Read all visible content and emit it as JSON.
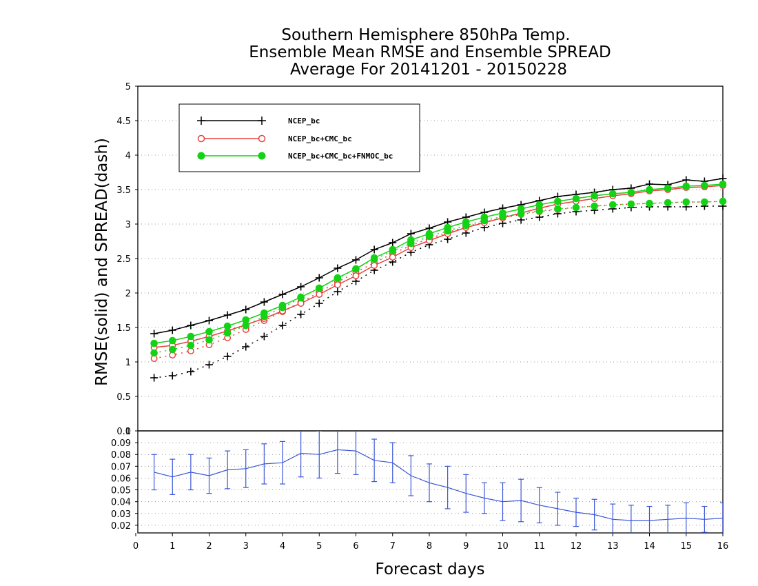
{
  "title": {
    "line1": "Southern Hemisphere 850hPa Temp.",
    "line2": "Ensemble Mean RMSE and Ensemble SPREAD",
    "line3": "Average For 20141201 - 20150228"
  },
  "colors": {
    "ncep": "#000000",
    "ncep_cmc": "#e8413c",
    "ncep_cmc_fnmoc": "#14d214",
    "diff": "#3a55d8"
  },
  "chart_data": [
    {
      "type": "line",
      "panel": "top",
      "ylabel": "RMSE(solid) and SPREAD(dash)",
      "ylim": [
        0,
        5
      ],
      "yticks": [
        "0",
        "0.5",
        "1",
        "1.5",
        "2",
        "2.5",
        "3",
        "3.5",
        "4",
        "4.5",
        "5"
      ],
      "grid": true,
      "legend_position": "top-left",
      "x": [
        0.5,
        1,
        1.5,
        2,
        2.5,
        3,
        3.5,
        4,
        4.5,
        5,
        5.5,
        6,
        6.5,
        7,
        7.5,
        8,
        8.5,
        9,
        9.5,
        10,
        10.5,
        11,
        11.5,
        12,
        12.5,
        13,
        13.5,
        14,
        14.5,
        15,
        15.5,
        16
      ],
      "series": [
        {
          "name": "NCEP_bc",
          "color": "black",
          "marker": "plus",
          "rmse": [
            1.41,
            1.46,
            1.53,
            1.6,
            1.68,
            1.76,
            1.87,
            1.98,
            2.09,
            2.22,
            2.36,
            2.48,
            2.63,
            2.73,
            2.86,
            2.94,
            3.03,
            3.1,
            3.17,
            3.23,
            3.28,
            3.34,
            3.4,
            3.43,
            3.46,
            3.5,
            3.52,
            3.58,
            3.57,
            3.64,
            3.62,
            3.66
          ],
          "spread": [
            0.77,
            0.8,
            0.86,
            0.96,
            1.08,
            1.22,
            1.37,
            1.53,
            1.69,
            1.85,
            2.02,
            2.17,
            2.33,
            2.45,
            2.59,
            2.7,
            2.78,
            2.87,
            2.95,
            3.01,
            3.06,
            3.1,
            3.15,
            3.18,
            3.2,
            3.22,
            3.24,
            3.25,
            3.25,
            3.25,
            3.26,
            3.26
          ]
        },
        {
          "name": "NCEP_bc+CMC_bc",
          "color": "red",
          "marker": "open-circle",
          "rmse": [
            1.21,
            1.24,
            1.3,
            1.37,
            1.45,
            1.54,
            1.63,
            1.74,
            1.85,
            1.98,
            2.12,
            2.25,
            2.4,
            2.52,
            2.66,
            2.76,
            2.86,
            2.95,
            3.02,
            3.09,
            3.16,
            3.23,
            3.29,
            3.33,
            3.37,
            3.41,
            3.44,
            3.48,
            3.5,
            3.53,
            3.54,
            3.56
          ],
          "spread": [
            1.05,
            1.1,
            1.16,
            1.25,
            1.35,
            1.47,
            1.6,
            1.73,
            1.87,
            2.01,
            2.16,
            2.3,
            2.44,
            2.57,
            2.69,
            2.79,
            2.88,
            2.96,
            3.03,
            3.09,
            3.14,
            3.18,
            3.21,
            3.24,
            3.26,
            3.28,
            3.29,
            3.3,
            3.31,
            3.32,
            3.32,
            3.33
          ]
        },
        {
          "name": "NCEP_bc+CMC_bc+FNMOC_bc",
          "color": "green",
          "marker": "filled-circle",
          "rmse": [
            1.27,
            1.31,
            1.37,
            1.44,
            1.52,
            1.61,
            1.71,
            1.82,
            1.94,
            2.07,
            2.22,
            2.35,
            2.51,
            2.63,
            2.77,
            2.86,
            2.95,
            3.03,
            3.1,
            3.16,
            3.22,
            3.28,
            3.33,
            3.37,
            3.41,
            3.44,
            3.46,
            3.5,
            3.52,
            3.55,
            3.56,
            3.58
          ],
          "spread": [
            1.13,
            1.18,
            1.24,
            1.32,
            1.42,
            1.53,
            1.66,
            1.79,
            1.93,
            2.07,
            2.21,
            2.35,
            2.49,
            2.61,
            2.72,
            2.82,
            2.9,
            2.98,
            3.05,
            3.11,
            3.15,
            3.19,
            3.22,
            3.24,
            3.26,
            3.28,
            3.29,
            3.3,
            3.31,
            3.32,
            3.32,
            3.33
          ]
        }
      ]
    },
    {
      "type": "line",
      "panel": "bottom",
      "xlabel": "Forecast days",
      "xlim": [
        0,
        16
      ],
      "xticks": [
        "0",
        "1",
        "2",
        "3",
        "4",
        "5",
        "6",
        "7",
        "8",
        "9",
        "10",
        "11",
        "12",
        "13",
        "14",
        "15",
        "16"
      ],
      "ylim": [
        0.01,
        0.1
      ],
      "yticks": [
        "0.02",
        "0.03",
        "0.04",
        "0.05",
        "0.06",
        "0.07",
        "0.08",
        "0.09",
        "0.1"
      ],
      "grid": true,
      "x": [
        0.5,
        1,
        1.5,
        2,
        2.5,
        3,
        3.5,
        4,
        4.5,
        5,
        5.5,
        6,
        6.5,
        7,
        7.5,
        8,
        8.5,
        9,
        9.5,
        10,
        10.5,
        11,
        11.5,
        12,
        12.5,
        13,
        13.5,
        14,
        14.5,
        15,
        15.5,
        16
      ],
      "values": [
        0.065,
        0.061,
        0.065,
        0.062,
        0.067,
        0.068,
        0.072,
        0.073,
        0.081,
        0.08,
        0.084,
        0.083,
        0.075,
        0.073,
        0.062,
        0.056,
        0.052,
        0.047,
        0.043,
        0.04,
        0.041,
        0.037,
        0.034,
        0.031,
        0.029,
        0.025,
        0.024,
        0.024,
        0.025,
        0.026,
        0.025,
        0.026
      ],
      "errors": [
        0.015,
        0.015,
        0.015,
        0.015,
        0.016,
        0.016,
        0.017,
        0.018,
        0.02,
        0.02,
        0.02,
        0.02,
        0.018,
        0.017,
        0.017,
        0.016,
        0.018,
        0.016,
        0.013,
        0.016,
        0.018,
        0.015,
        0.014,
        0.012,
        0.013,
        0.013,
        0.013,
        0.012,
        0.012,
        0.013,
        0.011,
        0.013
      ]
    }
  ]
}
